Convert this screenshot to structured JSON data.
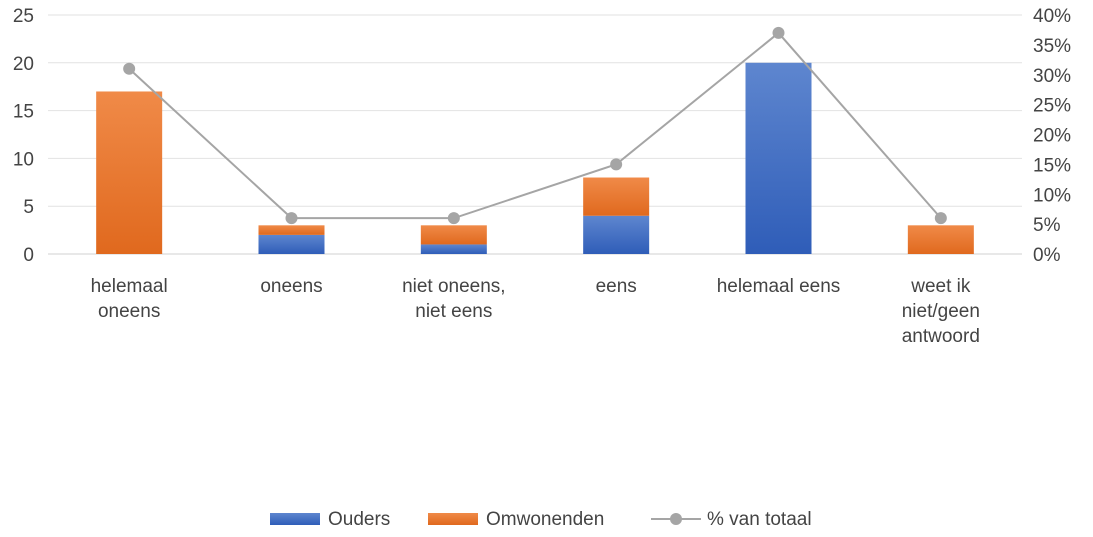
{
  "chart_data": {
    "type": "bar",
    "stacked": true,
    "categories": [
      [
        "helemaal",
        "oneens"
      ],
      [
        "oneens"
      ],
      [
        "niet oneens,",
        "niet eens"
      ],
      [
        "eens"
      ],
      [
        "helemaal eens"
      ],
      [
        "weet ik",
        "niet/geen",
        "antwoord"
      ]
    ],
    "series": [
      {
        "name": "Ouders",
        "type": "bar",
        "axis": "left",
        "color": "#4472C4",
        "values": [
          0,
          2,
          1,
          4,
          20,
          0
        ]
      },
      {
        "name": "Omwonenden",
        "type": "bar",
        "axis": "left",
        "color": "#ED7D31",
        "values": [
          17,
          1,
          2,
          4,
          0,
          3
        ]
      },
      {
        "name": "% van totaal",
        "type": "line",
        "axis": "right",
        "color": "#A5A5A5",
        "values": [
          0.31,
          0.06,
          0.06,
          0.15,
          0.37,
          0.06
        ]
      }
    ],
    "y_left": {
      "min": 0,
      "max": 25,
      "ticks": [
        "0",
        "5",
        "10",
        "15",
        "20",
        "25"
      ]
    },
    "y_right": {
      "min": 0,
      "max": 0.4,
      "ticks": [
        "0%",
        "5%",
        "10%",
        "15%",
        "20%",
        "25%",
        "30%",
        "35%",
        "40%"
      ]
    },
    "grid": true,
    "legend": "bottom-center"
  }
}
